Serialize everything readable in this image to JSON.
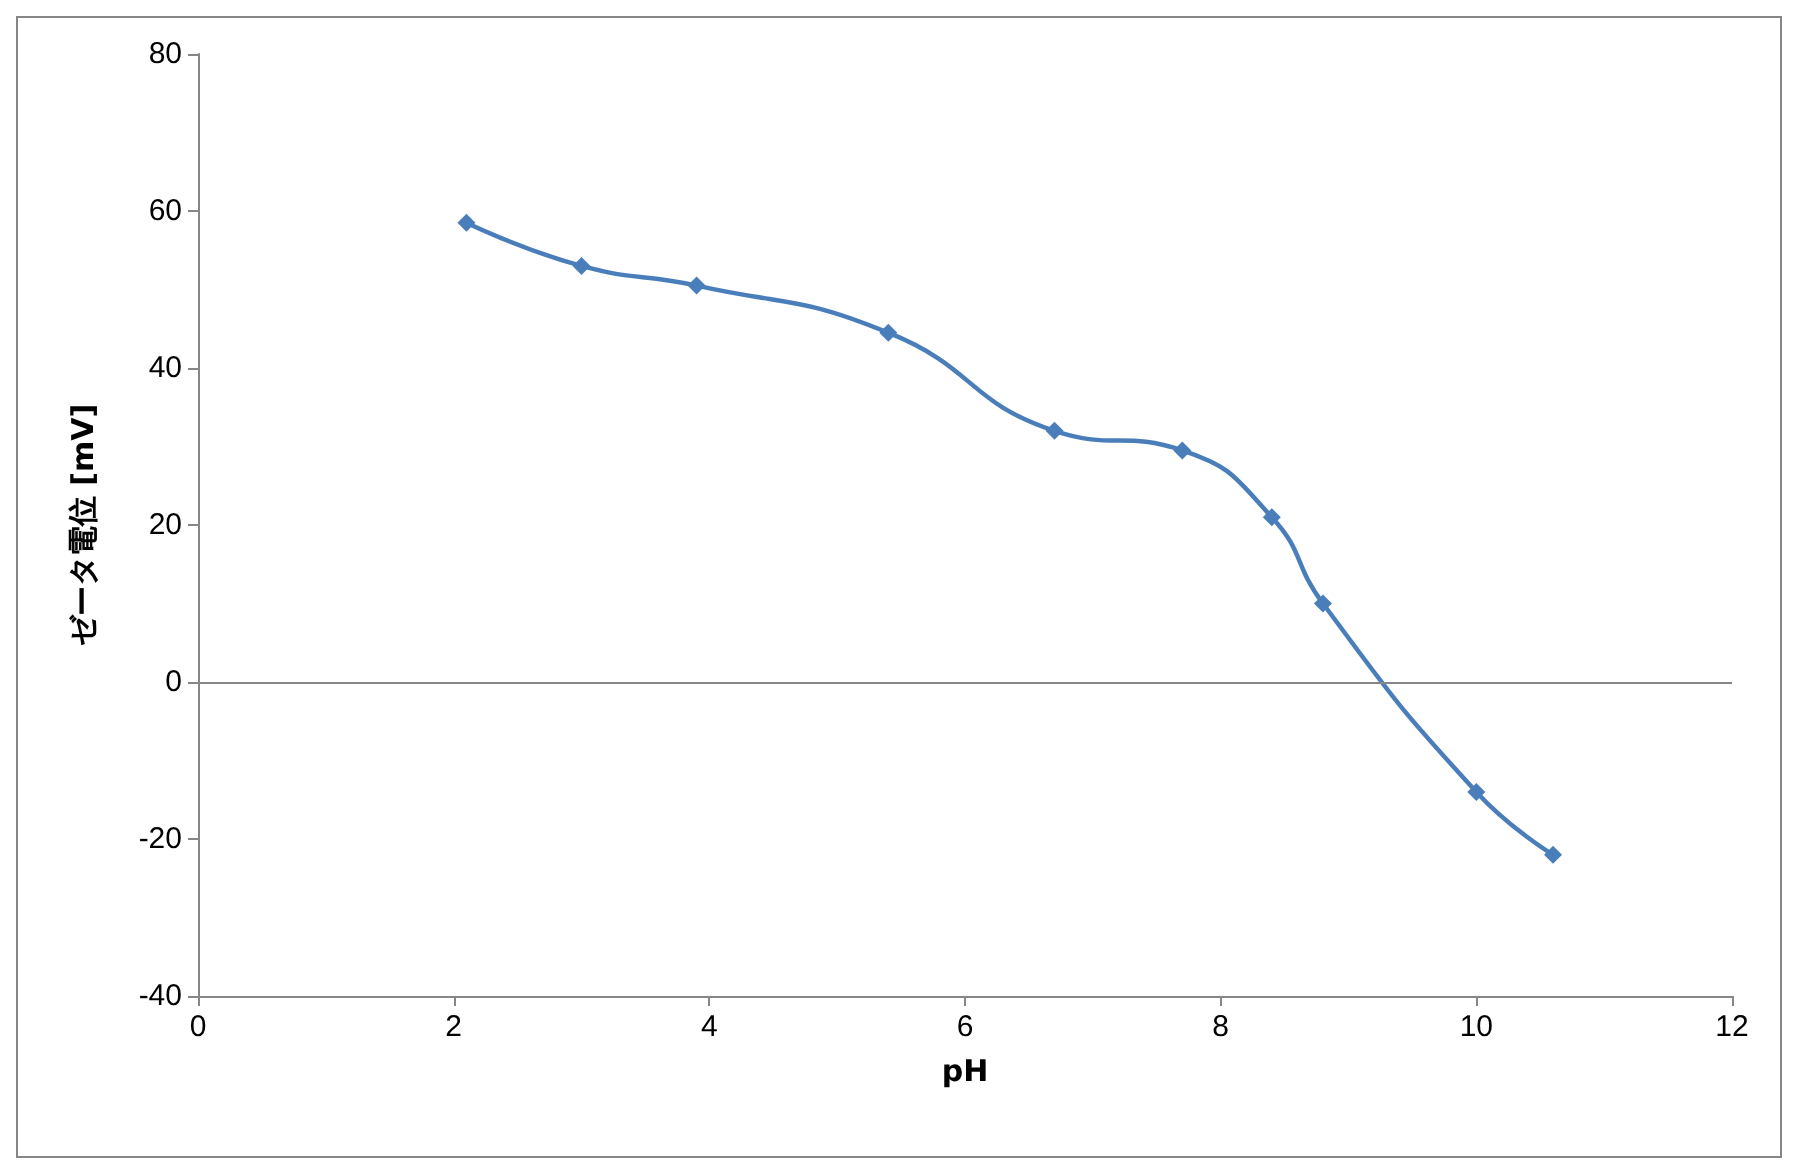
{
  "chart_data": {
    "type": "line",
    "xlabel": "pH",
    "ylabel": "ゼータ電位 [mV]",
    "series": [
      {
        "color": "#4a7ebb",
        "x": [
          2.1,
          3.0,
          3.9,
          5.4,
          6.7,
          7.7,
          8.4,
          8.8,
          10.0,
          10.6
        ],
        "values": [
          58.5,
          53,
          50.5,
          44.5,
          32,
          29.5,
          21,
          10,
          -14,
          -22
        ]
      }
    ],
    "xlim": [
      0,
      12
    ],
    "xticks": [
      0,
      2,
      4,
      6,
      8,
      10,
      12
    ],
    "ylim": [
      -40,
      80
    ],
    "yticks": [
      -40,
      -20,
      0,
      20,
      40,
      60,
      80
    ],
    "ref_lines": [
      {
        "axis": "y",
        "value": 0,
        "color": "#868686"
      }
    ],
    "grid": false,
    "marker": "diamond",
    "line_style": "solid"
  }
}
